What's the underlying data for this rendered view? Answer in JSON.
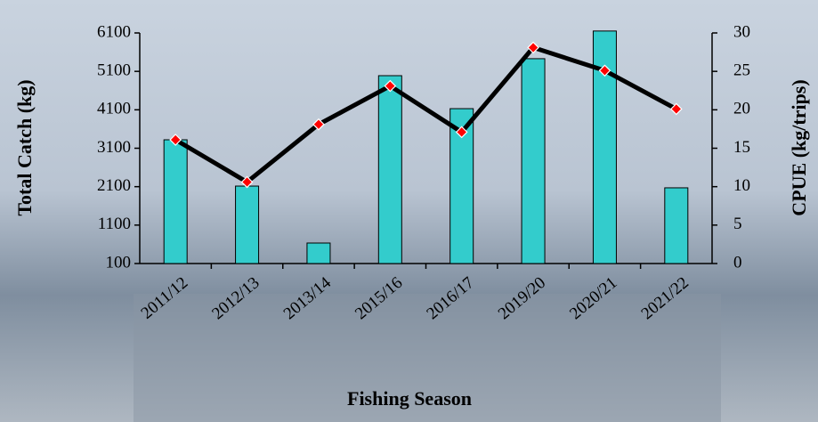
{
  "chart_data": {
    "type": "bar-line",
    "x_label": "Fishing Season",
    "y_label": "Total Catch (kg)",
    "y2_label": "CPUE (kg/trips)",
    "categories": [
      "2011/12",
      "2012/13",
      "2013/14",
      "2015/16",
      "2016/17",
      "2019/20",
      "2020/21",
      "2021/22"
    ],
    "series": [
      {
        "type": "bar",
        "color": "#33cccc",
        "values": [
          3320,
          2115,
          633,
          4988,
          4130,
          5430,
          6150,
          2070
        ]
      },
      {
        "type": "line",
        "axis": "y2",
        "color": "#000000",
        "marker_color": "#ff0000",
        "values": [
          16.1,
          10.6,
          18.1,
          23.1,
          17.1,
          28.1,
          25.1,
          20.1
        ]
      }
    ],
    "ylim": [
      100,
      6100
    ],
    "yticks": [
      100,
      1100,
      2100,
      3100,
      4100,
      5100,
      6100
    ],
    "y2lim": [
      0,
      30
    ],
    "y2ticks": [
      0,
      5,
      10,
      15,
      20,
      25,
      30
    ]
  }
}
